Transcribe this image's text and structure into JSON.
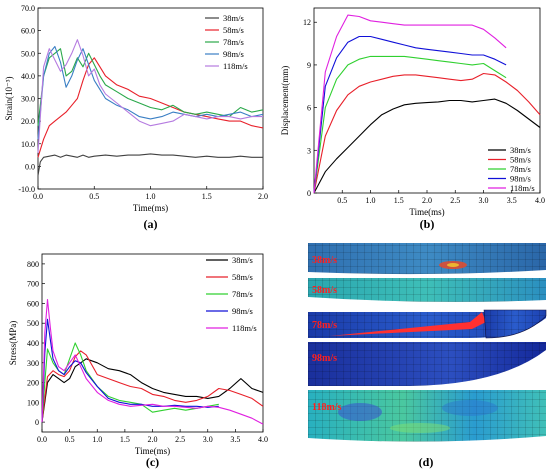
{
  "chart_data": [
    {
      "type": "line",
      "panel_label": "(a)",
      "xlabel": "Time(ms)",
      "ylabel": "Strain(10⁻³)",
      "xlim": [
        0,
        2.0
      ],
      "ylim": [
        -10,
        70
      ],
      "xticks": [
        "0.0",
        "0.5",
        "1.0",
        "1.5",
        "2.0"
      ],
      "yticks": [
        "-10.0",
        "0.0",
        "10.0",
        "20.0",
        "30.0",
        "40.0",
        "50.0",
        "60.0",
        "70.0"
      ],
      "legend_position": "top-right",
      "series": [
        {
          "name": "38m/s",
          "color": "#404040",
          "x": [
            0,
            0.02,
            0.05,
            0.1,
            0.15,
            0.2,
            0.25,
            0.3,
            0.35,
            0.4,
            0.45,
            0.5,
            0.6,
            0.7,
            0.8,
            0.9,
            1.0,
            1.1,
            1.2,
            1.3,
            1.4,
            1.5,
            1.6,
            1.7,
            1.8,
            1.9,
            2.0
          ],
          "y": [
            -4,
            2,
            4,
            4.5,
            5,
            4,
            5,
            4.5,
            4,
            5,
            4,
            4.5,
            5,
            4.5,
            5,
            5,
            5.5,
            5,
            5,
            4.5,
            4,
            4.5,
            4,
            4,
            4.5,
            4,
            4
          ]
        },
        {
          "name": "58m/s",
          "color": "#e8202a",
          "x": [
            0,
            0.05,
            0.1,
            0.15,
            0.2,
            0.25,
            0.3,
            0.35,
            0.4,
            0.45,
            0.5,
            0.55,
            0.6,
            0.7,
            0.8,
            0.9,
            1.0,
            1.1,
            1.2,
            1.3,
            1.4,
            1.5,
            1.6,
            1.7,
            1.8,
            1.9,
            2.0
          ],
          "y": [
            4,
            12,
            18,
            20,
            22,
            24,
            27,
            30,
            38,
            45,
            48,
            44,
            40,
            36,
            34,
            31,
            30,
            28,
            26,
            24,
            23,
            22,
            21,
            20,
            20,
            18,
            17
          ]
        },
        {
          "name": "78m/s",
          "color": "#2aa84a",
          "x": [
            0,
            0.05,
            0.1,
            0.15,
            0.2,
            0.25,
            0.3,
            0.35,
            0.4,
            0.45,
            0.5,
            0.55,
            0.6,
            0.7,
            0.8,
            0.9,
            1.0,
            1.1,
            1.2,
            1.3,
            1.4,
            1.5,
            1.6,
            1.7,
            1.8,
            1.9,
            2.0
          ],
          "y": [
            18,
            40,
            48,
            50,
            52,
            40,
            42,
            48,
            44,
            50,
            45,
            40,
            36,
            33,
            30,
            28,
            26,
            25,
            27,
            24,
            23,
            24,
            23,
            22,
            26,
            24,
            25
          ]
        },
        {
          "name": "98m/s",
          "color": "#3a7fc4",
          "x": [
            0,
            0.05,
            0.1,
            0.15,
            0.2,
            0.25,
            0.3,
            0.35,
            0.4,
            0.45,
            0.5,
            0.55,
            0.6,
            0.7,
            0.8,
            0.9,
            1.0,
            1.1,
            1.2,
            1.3,
            1.4,
            1.5,
            1.6,
            1.7,
            1.8,
            1.9,
            2.0
          ],
          "y": [
            12,
            40,
            50,
            53,
            46,
            35,
            40,
            47,
            52,
            45,
            38,
            34,
            30,
            27,
            25,
            22,
            21,
            22,
            24,
            23,
            22,
            23,
            22,
            23,
            24,
            22,
            23
          ]
        },
        {
          "name": "118m/s",
          "color": "#b57be0",
          "x": [
            0,
            0.05,
            0.1,
            0.15,
            0.2,
            0.25,
            0.3,
            0.35,
            0.4,
            0.45,
            0.5,
            0.55,
            0.6,
            0.7,
            0.8,
            0.9,
            1.0,
            1.1,
            1.2,
            1.3,
            1.4,
            1.5,
            1.6,
            1.7,
            1.8,
            1.9,
            2.0
          ],
          "y": [
            6,
            44,
            52,
            47,
            42,
            45,
            50,
            56,
            49,
            40,
            43,
            36,
            32,
            28,
            24,
            20,
            18,
            19,
            20,
            23,
            22,
            21,
            22,
            22,
            21,
            22,
            22
          ]
        }
      ]
    },
    {
      "type": "line",
      "panel_label": "(b)",
      "xlabel": "Time(ms)",
      "ylabel": "Displacement(mm)",
      "xlim": [
        0,
        4.0
      ],
      "ylim": [
        0,
        13
      ],
      "xticks": [
        "0.5",
        "1.0",
        "1.5",
        "2.0",
        "2.5",
        "3.0",
        "3.5",
        "4.0"
      ],
      "yticks": [
        "0",
        "3",
        "6",
        "9",
        "12"
      ],
      "legend_position": "bottom-right",
      "series": [
        {
          "name": "38m/s",
          "color": "#000000",
          "x": [
            0,
            0.2,
            0.4,
            0.6,
            0.8,
            1.0,
            1.2,
            1.4,
            1.6,
            1.8,
            2.0,
            2.2,
            2.4,
            2.6,
            2.8,
            3.0,
            3.2,
            3.4,
            3.6,
            3.8,
            4.0
          ],
          "y": [
            0,
            1.5,
            2.4,
            3.2,
            4.0,
            4.8,
            5.5,
            5.9,
            6.2,
            6.3,
            6.35,
            6.4,
            6.5,
            6.5,
            6.4,
            6.5,
            6.6,
            6.3,
            5.8,
            5.2,
            4.6
          ]
        },
        {
          "name": "58m/s",
          "color": "#e8202a",
          "x": [
            0,
            0.2,
            0.4,
            0.6,
            0.8,
            1.0,
            1.2,
            1.4,
            1.6,
            1.8,
            2.0,
            2.2,
            2.4,
            2.6,
            2.8,
            3.0,
            3.2,
            3.4,
            3.6,
            3.8,
            4.0
          ],
          "y": [
            0,
            4.0,
            5.8,
            6.9,
            7.5,
            7.8,
            8.0,
            8.2,
            8.3,
            8.3,
            8.2,
            8.1,
            8.0,
            7.9,
            8.0,
            8.4,
            8.3,
            7.8,
            7.2,
            6.4,
            5.5
          ]
        },
        {
          "name": "78m/s",
          "color": "#30d030",
          "x": [
            0,
            0.2,
            0.4,
            0.6,
            0.8,
            1.0,
            1.2,
            1.4,
            1.6,
            1.8,
            2.0,
            2.2,
            2.4,
            2.6,
            2.8,
            3.0,
            3.2,
            3.4
          ],
          "y": [
            0,
            6.0,
            8.0,
            9.0,
            9.4,
            9.6,
            9.6,
            9.6,
            9.6,
            9.5,
            9.4,
            9.3,
            9.2,
            9.1,
            9.0,
            9.1,
            8.6,
            8.1
          ]
        },
        {
          "name": "98m/s",
          "color": "#1010d8",
          "x": [
            0,
            0.2,
            0.4,
            0.6,
            0.8,
            1.0,
            1.2,
            1.4,
            1.6,
            1.8,
            2.0,
            2.2,
            2.4,
            2.6,
            2.8,
            3.0,
            3.2,
            3.4
          ],
          "y": [
            0,
            7.5,
            9.5,
            10.6,
            11.0,
            11.0,
            10.8,
            10.6,
            10.4,
            10.2,
            10.1,
            10.0,
            9.9,
            9.8,
            9.7,
            9.7,
            9.4,
            9.0
          ]
        },
        {
          "name": "118m/s",
          "color": "#e020e0",
          "x": [
            0,
            0.2,
            0.4,
            0.6,
            0.8,
            1.0,
            1.2,
            1.4,
            1.6,
            1.8,
            2.0,
            2.2,
            2.4,
            2.6,
            2.8,
            3.0,
            3.2,
            3.4
          ],
          "y": [
            0,
            8.5,
            11.0,
            12.5,
            12.4,
            12.1,
            12.0,
            11.9,
            11.8,
            11.8,
            11.8,
            11.8,
            11.8,
            11.8,
            11.8,
            11.5,
            10.9,
            10.2
          ]
        }
      ]
    },
    {
      "type": "line",
      "panel_label": "(c)",
      "xlabel": "Time(ms)",
      "ylabel": "Stress(MPa)",
      "xlim": [
        0,
        4.0
      ],
      "ylim": [
        -50,
        850
      ],
      "xticks": [
        "0.0",
        "0.5",
        "1.0",
        "1.5",
        "2.0",
        "2.5",
        "3.0",
        "3.5",
        "4.0"
      ],
      "yticks": [
        "0",
        "100",
        "200",
        "300",
        "400",
        "500",
        "600",
        "700",
        "800"
      ],
      "legend_position": "top-right",
      "series": [
        {
          "name": "38m/s",
          "color": "#000000",
          "x": [
            0,
            0.05,
            0.1,
            0.2,
            0.3,
            0.4,
            0.5,
            0.6,
            0.7,
            0.8,
            1.0,
            1.2,
            1.4,
            1.6,
            1.8,
            2.0,
            2.2,
            2.4,
            2.6,
            2.8,
            3.0,
            3.2,
            3.4,
            3.6,
            3.8,
            4.0
          ],
          "y": [
            0,
            100,
            200,
            240,
            220,
            200,
            220,
            280,
            300,
            320,
            300,
            270,
            260,
            240,
            200,
            170,
            150,
            140,
            130,
            130,
            120,
            130,
            170,
            220,
            170,
            150
          ]
        },
        {
          "name": "58m/s",
          "color": "#e8202a",
          "x": [
            0,
            0.05,
            0.1,
            0.2,
            0.3,
            0.4,
            0.5,
            0.6,
            0.7,
            0.8,
            1.0,
            1.2,
            1.4,
            1.6,
            1.8,
            2.0,
            2.2,
            2.4,
            2.6,
            2.8,
            3.0,
            3.2,
            3.4,
            3.6,
            3.8,
            4.0
          ],
          "y": [
            0,
            120,
            230,
            260,
            240,
            230,
            260,
            330,
            360,
            340,
            240,
            220,
            200,
            180,
            170,
            140,
            130,
            110,
            100,
            110,
            130,
            170,
            160,
            140,
            120,
            80
          ]
        },
        {
          "name": "78m/s",
          "color": "#30d030",
          "x": [
            0,
            0.05,
            0.1,
            0.2,
            0.3,
            0.4,
            0.5,
            0.6,
            0.7,
            0.8,
            1.0,
            1.2,
            1.4,
            1.6,
            1.8,
            2.0,
            2.2,
            2.4,
            2.6,
            2.8,
            3.0,
            3.2
          ],
          "y": [
            0,
            200,
            370,
            300,
            260,
            240,
            320,
            400,
            340,
            260,
            180,
            130,
            110,
            100,
            90,
            50,
            60,
            70,
            60,
            70,
            80,
            90
          ]
        },
        {
          "name": "98m/s",
          "color": "#1010d8",
          "x": [
            0,
            0.05,
            0.1,
            0.2,
            0.3,
            0.4,
            0.5,
            0.6,
            0.7,
            0.8,
            1.0,
            1.2,
            1.4,
            1.6,
            1.8,
            2.0,
            2.2,
            2.4,
            2.6,
            2.8,
            3.0,
            3.2
          ],
          "y": [
            0,
            350,
            520,
            320,
            260,
            240,
            280,
            310,
            300,
            250,
            180,
            120,
            100,
            90,
            90,
            80,
            80,
            85,
            80,
            80,
            75,
            80
          ]
        },
        {
          "name": "118m/s",
          "color": "#e020e0",
          "x": [
            0,
            0.05,
            0.1,
            0.15,
            0.2,
            0.3,
            0.4,
            0.5,
            0.6,
            0.7,
            0.8,
            1.0,
            1.2,
            1.4,
            1.6,
            1.8,
            2.0,
            2.2,
            2.4,
            2.6,
            2.8,
            3.0,
            3.2,
            3.4,
            3.6,
            3.8,
            4.0
          ],
          "y": [
            0,
            450,
            620,
            480,
            360,
            280,
            260,
            300,
            340,
            280,
            220,
            150,
            110,
            90,
            80,
            85,
            90,
            80,
            80,
            75,
            70,
            80,
            75,
            60,
            40,
            20,
            -10
          ]
        }
      ]
    }
  ],
  "panel_d": {
    "panel_label": "(d)",
    "strips": [
      {
        "label": "38m/s"
      },
      {
        "label": "58m/s"
      },
      {
        "label": "78m/s"
      },
      {
        "label": "98m/s"
      },
      {
        "label": "118m/s"
      }
    ]
  }
}
